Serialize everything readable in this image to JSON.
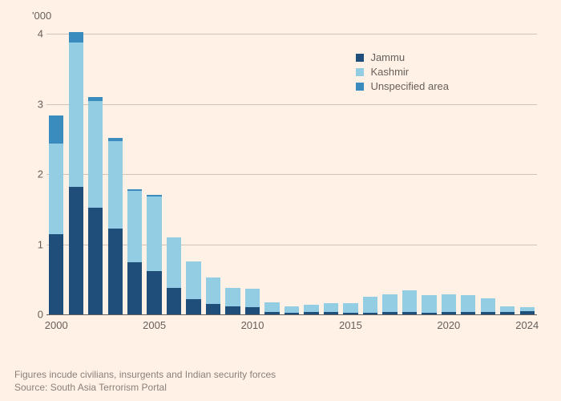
{
  "chart": {
    "type": "stacked-bar",
    "y_unit_label": "'000",
    "background_color": "#fff1e5",
    "grid_color": "#cdc4bc",
    "baseline_color": "#66605c",
    "text_color": "#66605c",
    "foot_color": "#8a817b",
    "label_fontsize": 13,
    "foot_fontsize": 12,
    "ylim": [
      0,
      4
    ],
    "yticks": [
      0,
      1,
      2,
      3,
      4
    ],
    "xlim": [
      2000,
      2024
    ],
    "xticks": [
      2000,
      2005,
      2010,
      2015,
      2020,
      2024
    ],
    "bar_gap_ratio": 0.25,
    "series": [
      {
        "key": "jammu",
        "label": "Jammu",
        "color": "#1e4e79"
      },
      {
        "key": "kashmir",
        "label": "Kashmir",
        "color": "#92cde3"
      },
      {
        "key": "unspecified",
        "label": "Unspecified area",
        "color": "#3a8cbf"
      }
    ],
    "data": [
      {
        "year": 2000,
        "jammu": 1.14,
        "kashmir": 1.3,
        "unspecified": 0.4
      },
      {
        "year": 2001,
        "jammu": 1.82,
        "kashmir": 2.06,
        "unspecified": 0.14
      },
      {
        "year": 2002,
        "jammu": 1.52,
        "kashmir": 1.52,
        "unspecified": 0.06
      },
      {
        "year": 2003,
        "jammu": 1.22,
        "kashmir": 1.25,
        "unspecified": 0.04
      },
      {
        "year": 2004,
        "jammu": 0.74,
        "kashmir": 1.02,
        "unspecified": 0.02
      },
      {
        "year": 2005,
        "jammu": 0.62,
        "kashmir": 1.06,
        "unspecified": 0.02
      },
      {
        "year": 2006,
        "jammu": 0.38,
        "kashmir": 0.72,
        "unspecified": 0.0
      },
      {
        "year": 2007,
        "jammu": 0.22,
        "kashmir": 0.54,
        "unspecified": 0.0
      },
      {
        "year": 2008,
        "jammu": 0.15,
        "kashmir": 0.38,
        "unspecified": 0.0
      },
      {
        "year": 2009,
        "jammu": 0.12,
        "kashmir": 0.26,
        "unspecified": 0.0
      },
      {
        "year": 2010,
        "jammu": 0.1,
        "kashmir": 0.27,
        "unspecified": 0.0
      },
      {
        "year": 2011,
        "jammu": 0.04,
        "kashmir": 0.13,
        "unspecified": 0.0
      },
      {
        "year": 2012,
        "jammu": 0.02,
        "kashmir": 0.1,
        "unspecified": 0.0
      },
      {
        "year": 2013,
        "jammu": 0.03,
        "kashmir": 0.11,
        "unspecified": 0.0
      },
      {
        "year": 2014,
        "jammu": 0.03,
        "kashmir": 0.13,
        "unspecified": 0.0
      },
      {
        "year": 2015,
        "jammu": 0.02,
        "kashmir": 0.14,
        "unspecified": 0.0
      },
      {
        "year": 2016,
        "jammu": 0.02,
        "kashmir": 0.23,
        "unspecified": 0.0
      },
      {
        "year": 2017,
        "jammu": 0.03,
        "kashmir": 0.26,
        "unspecified": 0.0
      },
      {
        "year": 2018,
        "jammu": 0.03,
        "kashmir": 0.31,
        "unspecified": 0.0
      },
      {
        "year": 2019,
        "jammu": 0.02,
        "kashmir": 0.25,
        "unspecified": 0.0
      },
      {
        "year": 2020,
        "jammu": 0.03,
        "kashmir": 0.26,
        "unspecified": 0.0
      },
      {
        "year": 2021,
        "jammu": 0.03,
        "kashmir": 0.24,
        "unspecified": 0.0
      },
      {
        "year": 2022,
        "jammu": 0.03,
        "kashmir": 0.2,
        "unspecified": 0.0
      },
      {
        "year": 2023,
        "jammu": 0.04,
        "kashmir": 0.08,
        "unspecified": 0.0
      },
      {
        "year": 2024,
        "jammu": 0.05,
        "kashmir": 0.05,
        "unspecified": 0.0
      }
    ],
    "legend_position": "top-right"
  },
  "footnote": "Figures incude civilians, insurgents and Indian security forces",
  "source": "Source: South Asia Terrorism Portal"
}
